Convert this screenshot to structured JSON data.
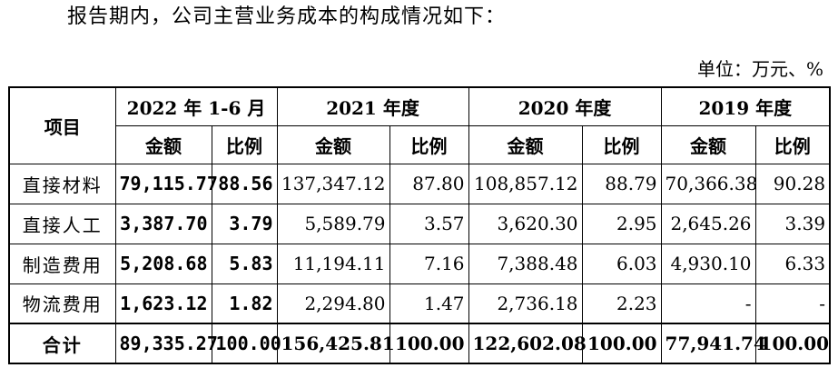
{
  "intro_text": "报告期内，公司主营业务成本的构成情况如下：",
  "unit_label": "单位：万元、%",
  "table": {
    "item_header": "项目",
    "periods": [
      "2022 年 1-6 月",
      "2021 年度",
      "2020 年度",
      "2019 年度"
    ],
    "amount_label": "金额",
    "ratio_label": "比例",
    "rows": [
      {
        "item": "直接材料",
        "cells": [
          {
            "amount": "79,115.77",
            "ratio": "88.56"
          },
          {
            "amount": "137,347.12",
            "ratio": "87.80"
          },
          {
            "amount": "108,857.12",
            "ratio": "88.79"
          },
          {
            "amount": "70,366.38",
            "ratio": "90.28"
          }
        ]
      },
      {
        "item": "直接人工",
        "cells": [
          {
            "amount": "3,387.70",
            "ratio": "3.79"
          },
          {
            "amount": "5,589.79",
            "ratio": "3.57"
          },
          {
            "amount": "3,620.30",
            "ratio": "2.95"
          },
          {
            "amount": "2,645.26",
            "ratio": "3.39"
          }
        ]
      },
      {
        "item": "制造费用",
        "cells": [
          {
            "amount": "5,208.68",
            "ratio": "5.83"
          },
          {
            "amount": "11,194.11",
            "ratio": "7.16"
          },
          {
            "amount": "7,388.48",
            "ratio": "6.03"
          },
          {
            "amount": "4,930.10",
            "ratio": "6.33"
          }
        ]
      },
      {
        "item": "物流费用",
        "cells": [
          {
            "amount": "1,623.12",
            "ratio": "1.82"
          },
          {
            "amount": "2,294.80",
            "ratio": "1.47"
          },
          {
            "amount": "2,736.18",
            "ratio": "2.23"
          },
          {
            "amount": "-",
            "ratio": "-"
          }
        ]
      }
    ],
    "total": {
      "item": "合计",
      "cells": [
        {
          "amount": "89,335.27",
          "ratio": "100.00"
        },
        {
          "amount": "156,425.81",
          "ratio": "100.00"
        },
        {
          "amount": "122,602.08",
          "ratio": "100.00"
        },
        {
          "amount": "77,941.74",
          "ratio": "100.00"
        }
      ]
    }
  }
}
